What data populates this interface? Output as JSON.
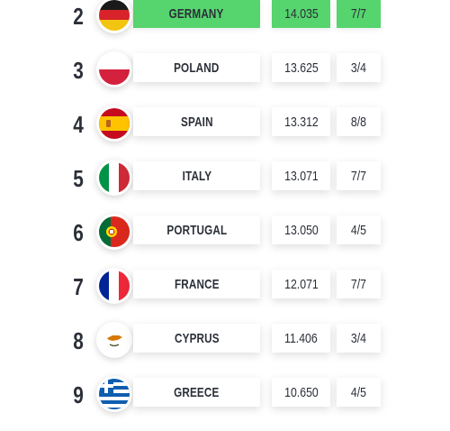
{
  "colors": {
    "highlight": "#56d46e",
    "text": "#2b2f38",
    "cell": "#ffffff"
  },
  "rows": [
    {
      "rank": "2",
      "country": "GERMANY",
      "points": "14.035",
      "record": "7/7",
      "flag_icon": "germany-flag-icon",
      "highlighted": true
    },
    {
      "rank": "3",
      "country": "POLAND",
      "points": "13.625",
      "record": "3/4",
      "flag_icon": "poland-flag-icon",
      "highlighted": false
    },
    {
      "rank": "4",
      "country": "SPAIN",
      "points": "13.312",
      "record": "8/8",
      "flag_icon": "spain-flag-icon",
      "highlighted": false
    },
    {
      "rank": "5",
      "country": "ITALY",
      "points": "13.071",
      "record": "7/7",
      "flag_icon": "italy-flag-icon",
      "highlighted": false
    },
    {
      "rank": "6",
      "country": "PORTUGAL",
      "points": "13.050",
      "record": "4/5",
      "flag_icon": "portugal-flag-icon",
      "highlighted": false
    },
    {
      "rank": "7",
      "country": "FRANCE",
      "points": "12.071",
      "record": "7/7",
      "flag_icon": "france-flag-icon",
      "highlighted": false
    },
    {
      "rank": "8",
      "country": "CYPRUS",
      "points": "11.406",
      "record": "3/4",
      "flag_icon": "cyprus-flag-icon",
      "highlighted": false
    },
    {
      "rank": "9",
      "country": "GREECE",
      "points": "10.650",
      "record": "4/5",
      "flag_icon": "greece-flag-icon",
      "highlighted": false
    }
  ]
}
